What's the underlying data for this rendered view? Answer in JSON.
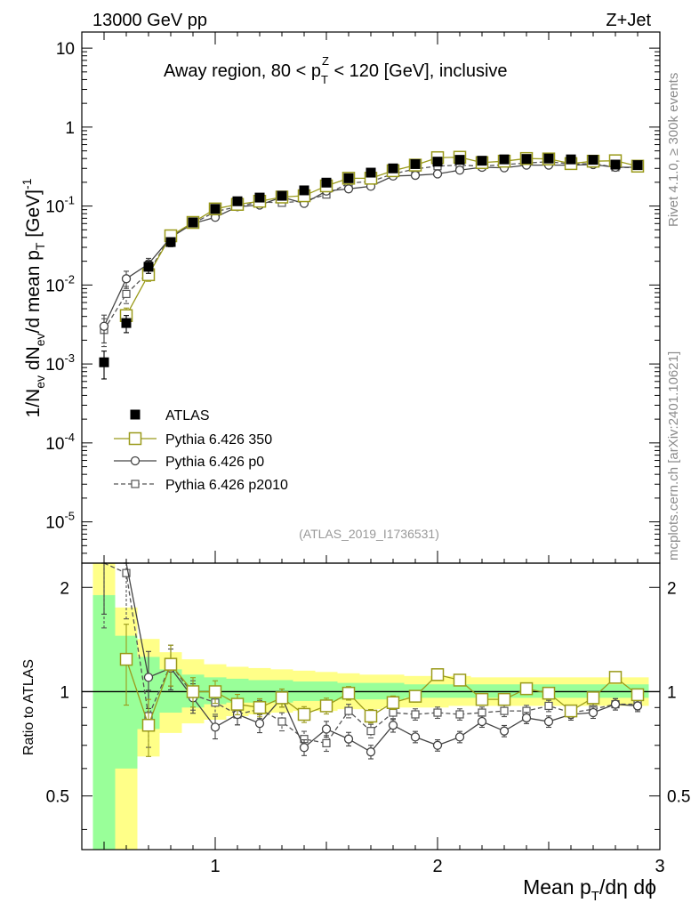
{
  "header": {
    "left": "13000 GeV pp",
    "right": "Z+Jet"
  },
  "side": {
    "top": "Rivet 4.1.0, ≥ 300k events",
    "bottom": "mcplots.cern.ch [arXiv:2401.10621]"
  },
  "chart_data": {
    "type": "line",
    "title": "Away region, 80 < p_T^Z < 120 [GeV], inclusive",
    "title_parts": {
      "pre": "Away region, 80 < p",
      "sub": "T",
      "sup": "Z",
      "post": " < 120 [GeV], inclusive"
    },
    "analysis_id": "(ATLAS_2019_I1736531)",
    "xlabel": "Mean p_T/dη dϕ",
    "ylabel": "1/N_ev dN_ev/d mean p_T [GeV]^-1",
    "ratio_ylabel": "Ratio to ATLAS",
    "xlim": [
      0.4,
      3.0
    ],
    "ylim": [
      3e-06,
      16
    ],
    "ratio_ylim": [
      0.35,
      2.35
    ],
    "y_scale": "log",
    "x_ticks": [
      "1",
      "2",
      "3"
    ],
    "y_tick_labels": [
      "10^-5",
      "10^-4",
      "10^-3",
      "10^-2",
      "10^-1",
      "1",
      "10"
    ],
    "ratio_tick_labels": [
      "0.5",
      "1",
      "2"
    ],
    "x": [
      0.5,
      0.6,
      0.7,
      0.8,
      0.9,
      1.0,
      1.1,
      1.2,
      1.3,
      1.4,
      1.5,
      1.6,
      1.7,
      1.8,
      1.9,
      2.0,
      2.1,
      2.2,
      2.3,
      2.4,
      2.5,
      2.6,
      2.7,
      2.8,
      2.9
    ],
    "series": [
      {
        "name": "ATLAS",
        "style": "data",
        "values": [
          0.00105,
          0.0033,
          0.017,
          0.035,
          0.062,
          0.092,
          0.115,
          0.128,
          0.135,
          0.158,
          0.198,
          0.225,
          0.265,
          0.3,
          0.34,
          0.365,
          0.385,
          0.375,
          0.39,
          0.395,
          0.4,
          0.39,
          0.385,
          0.335,
          0.33
        ]
      },
      {
        "name": "Pythia 6.426 350",
        "style": "solid-big-square",
        "values": [
          null,
          0.0041,
          0.0135,
          0.042,
          0.062,
          0.092,
          0.105,
          0.115,
          0.13,
          0.135,
          0.18,
          0.225,
          0.225,
          0.28,
          0.33,
          0.41,
          0.415,
          0.355,
          0.37,
          0.4,
          0.395,
          0.345,
          0.37,
          0.375,
          0.32
        ],
        "ratio": [
          null,
          1.24,
          0.8,
          1.2,
          1.0,
          1.0,
          0.92,
          0.9,
          0.96,
          0.86,
          0.91,
          0.99,
          0.85,
          0.93,
          0.97,
          1.12,
          1.08,
          0.95,
          0.95,
          1.02,
          0.99,
          0.88,
          0.96,
          1.1,
          0.98
        ]
      },
      {
        "name": "Pythia 6.426 p0",
        "style": "solid-circle",
        "values": [
          0.003,
          0.012,
          0.0185,
          0.04,
          0.06,
          0.072,
          0.098,
          0.103,
          0.13,
          0.108,
          0.155,
          0.165,
          0.178,
          0.24,
          0.245,
          0.255,
          0.285,
          0.31,
          0.305,
          0.33,
          0.33,
          0.33,
          0.335,
          0.31,
          0.31
        ],
        "ratio": [
          2.85,
          3.6,
          1.1,
          1.17,
          0.96,
          0.79,
          0.86,
          0.81,
          0.96,
          0.69,
          0.78,
          0.73,
          0.67,
          0.8,
          0.74,
          0.7,
          0.74,
          0.82,
          0.77,
          0.84,
          0.82,
          0.86,
          0.87,
          0.92,
          0.91
        ]
      },
      {
        "name": "Pythia 6.426 p2010",
        "style": "dashed-small-square",
        "values": [
          0.0027,
          0.0077,
          0.0145,
          0.042,
          0.06,
          0.085,
          0.098,
          0.113,
          0.11,
          0.116,
          0.14,
          0.195,
          0.205,
          0.255,
          0.295,
          0.32,
          0.33,
          0.32,
          0.335,
          0.35,
          0.365,
          0.34,
          0.345,
          0.31,
          0.305
        ],
        "ratio": [
          2.6,
          2.2,
          0.85,
          1.2,
          0.98,
          0.93,
          0.86,
          0.89,
          0.82,
          0.73,
          0.71,
          0.88,
          0.77,
          0.87,
          0.86,
          0.87,
          0.86,
          0.87,
          0.88,
          0.88,
          0.91,
          0.87,
          0.89,
          0.92,
          0.92
        ]
      }
    ],
    "rel_err_ratio": [
      0.55,
      0.35,
      0.25,
      0.18,
      0.13,
      0.1,
      0.09,
      0.08,
      0.08,
      0.07,
      0.07,
      0.06,
      0.06,
      0.06,
      0.05,
      0.05,
      0.05,
      0.05,
      0.05,
      0.05,
      0.05,
      0.05,
      0.05,
      0.05,
      0.05
    ],
    "band": {
      "stat_upper": [
        1.9,
        1.45,
        1.26,
        1.16,
        1.12,
        1.1,
        1.09,
        1.08,
        1.08,
        1.07,
        1.07,
        1.06,
        1.06,
        1.06,
        1.05,
        1.05,
        1.05,
        1.05,
        1.05,
        1.05,
        1.05,
        1.05,
        1.05,
        1.05,
        1.05
      ],
      "stat_lower": [
        0.35,
        0.6,
        0.78,
        0.87,
        0.9,
        0.92,
        0.93,
        0.93,
        0.93,
        0.94,
        0.94,
        0.95,
        0.95,
        0.95,
        0.96,
        0.96,
        0.96,
        0.96,
        0.96,
        0.96,
        0.96,
        0.96,
        0.96,
        0.96,
        0.96
      ],
      "tot_upper": [
        2.35,
        1.75,
        1.42,
        1.3,
        1.24,
        1.2,
        1.18,
        1.17,
        1.16,
        1.15,
        1.14,
        1.13,
        1.12,
        1.12,
        1.11,
        1.11,
        1.11,
        1.1,
        1.1,
        1.1,
        1.1,
        1.1,
        1.1,
        1.1,
        1.1
      ],
      "tot_lower": [
        0.35,
        0.35,
        0.65,
        0.76,
        0.81,
        0.83,
        0.85,
        0.86,
        0.87,
        0.88,
        0.88,
        0.89,
        0.89,
        0.9,
        0.9,
        0.9,
        0.91,
        0.91,
        0.91,
        0.91,
        0.91,
        0.91,
        0.91,
        0.91,
        0.91
      ]
    },
    "colors": {
      "data": "#000000",
      "p350": "#9a9a1a",
      "p0": "#444444",
      "p2010": "#555555",
      "band_stat": "#99ff99",
      "band_total": "#ffff88"
    }
  }
}
